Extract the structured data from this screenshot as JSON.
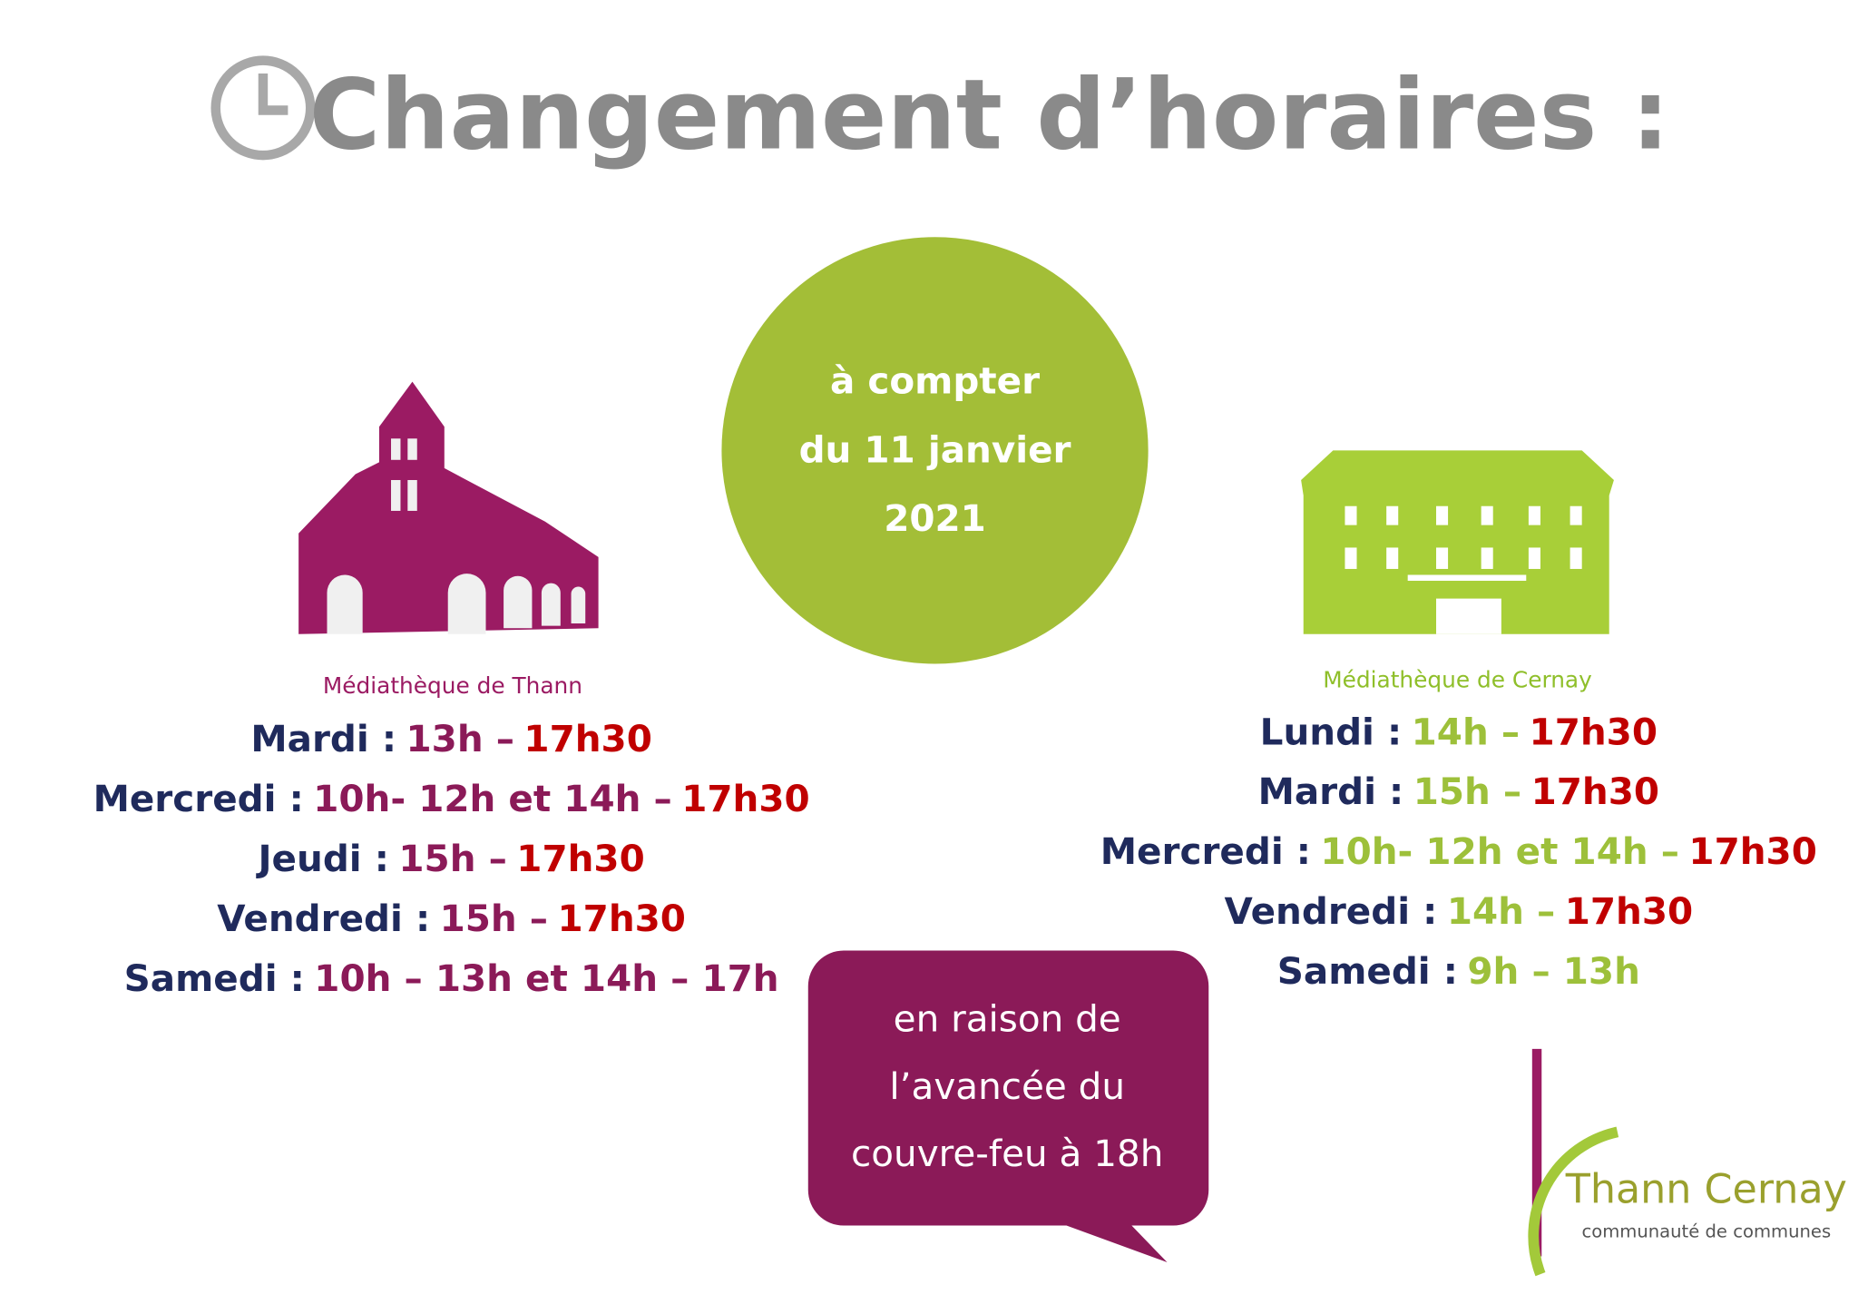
{
  "header": {
    "title": "Changement d’horaires :"
  },
  "badge": {
    "lines": [
      "à compter",
      "du 11 janvier",
      "2021"
    ]
  },
  "thann": {
    "name": "Médiathèque de Thann",
    "rows": [
      {
        "day": "Mardi :",
        "hours": "13h –",
        "end": "17h30"
      },
      {
        "day": "Mercredi :",
        "hours": "10h- 12h et 14h –",
        "end": "17h30"
      },
      {
        "day": "Jeudi :",
        "hours": "15h –",
        "end": "17h30"
      },
      {
        "day": "Vendredi  :",
        "hours": "15h –",
        "end": "17h30"
      },
      {
        "day": "Samedi :",
        "hours": "10h – 13h et 14h – 17h"
      }
    ]
  },
  "cernay": {
    "name": "Médiathèque de Cernay",
    "rows": [
      {
        "day": "Lundi :",
        "hours": "14h –",
        "end": "17h30"
      },
      {
        "day": "Mardi :",
        "hours": "15h –",
        "end": "17h30"
      },
      {
        "day": "Mercredi :",
        "hours": "10h- 12h et 14h –",
        "end": "17h30"
      },
      {
        "day": "Vendredi  :",
        "hours": "14h –",
        "end": "17h30"
      },
      {
        "day": "Samedi :",
        "hours": "9h – 13h"
      }
    ]
  },
  "note": {
    "lines": [
      "en raison de",
      "l’avancée du",
      "couvre-feu à 18h"
    ]
  },
  "logo": {
    "name": "Thann Cernay",
    "subtitle": "communauté de communes"
  }
}
